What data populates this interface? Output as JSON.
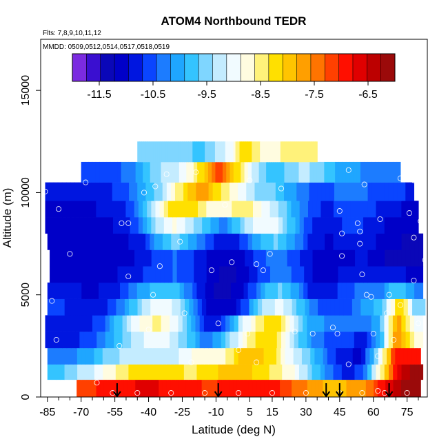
{
  "chart_data": {
    "type": "heatmap",
    "title": "ATOM4 Northbound TEDR",
    "subtitle_flights": "Flts: 7,8,9,10,11,12",
    "subtitle_dates": "MMDD: 0509,0512,0514,0517,0518,0519",
    "xlabel": "Latitude (deg N)",
    "ylabel": "Altitude (m)",
    "xlim": [
      -88,
      84
    ],
    "ylim": [
      0,
      17500
    ],
    "xticks": [
      -85,
      -70,
      -55,
      -40,
      -25,
      -10,
      5,
      15,
      30,
      45,
      60,
      75
    ],
    "x_minor_ticks": [
      -80,
      -75,
      -65,
      -60,
      -50,
      -45,
      -35,
      -30,
      -20,
      -15,
      -5,
      0,
      10,
      20,
      25,
      35,
      40,
      50,
      55,
      65,
      70,
      80
    ],
    "yticks": [
      0,
      5000,
      10000,
      15000
    ],
    "colorbar": {
      "ticks": [
        -11.5,
        -10.5,
        -9.5,
        -8.5,
        -7.5,
        -6.5
      ],
      "range": [
        -12,
        -6
      ],
      "colors": [
        "#7b2be0",
        "#3a0fd0",
        "#0a07b8",
        "#0000c8",
        "#0016e0",
        "#0a45ff",
        "#1c7cff",
        "#1fa6ff",
        "#34c4ff",
        "#7fd6ff",
        "#c4ecff",
        "#f1fbff",
        "#fffce0",
        "#fff27a",
        "#ffe000",
        "#ffc400",
        "#ff9f00",
        "#ff7400",
        "#ff4000",
        "#ff0f00",
        "#e00000",
        "#bc0000",
        "#9b0a0a"
      ]
    },
    "flight_markers_latitude": [
      -54,
      -9,
      39,
      45,
      67
    ],
    "data_band_altitudes": [
      500,
      1200,
      2000,
      2800,
      3600,
      4400,
      5200,
      6000,
      6800,
      7600,
      8400,
      9200,
      10000,
      11000,
      12000
    ],
    "data_band_lat_ranges": [
      [
        -72,
        81
      ],
      [
        -85,
        82
      ],
      [
        -85,
        81
      ],
      [
        -86,
        82
      ],
      [
        -86,
        82
      ],
      [
        -85,
        83
      ],
      [
        -85,
        82
      ],
      [
        -84,
        82
      ],
      [
        -84,
        82
      ],
      [
        -85,
        82
      ],
      [
        -86,
        80
      ],
      [
        -86,
        80
      ],
      [
        -86,
        78
      ],
      [
        -70,
        72
      ],
      [
        -45,
        35
      ]
    ],
    "data_values_log10_edr": [
      [
        -7.2,
        -7.0,
        -7.0,
        -6.8,
        -6.7,
        -6.8,
        -6.9,
        -7.0,
        -7.1,
        -7.0,
        -6.9,
        -6.8,
        -6.9,
        -7.2,
        -7.5,
        -7.8,
        -7.9,
        -7.8,
        -7.6,
        -6.9,
        -6.3,
        -6.0
      ],
      [
        -9.8,
        -9.5,
        -9.2,
        -8.8,
        -8.4,
        -8.2,
        -8.1,
        -8.3,
        -8.4,
        -8.2,
        -8.0,
        -7.9,
        -8.2,
        -8.5,
        -8.9,
        -9.6,
        -10.3,
        -10.8,
        -10.6,
        -8.6,
        -6.6,
        -6.2
      ],
      [
        -10.3,
        -10.2,
        -10.0,
        -9.6,
        -9.3,
        -9.2,
        -9.4,
        -9.2,
        -8.9,
        -8.6,
        -8.7,
        -7.9,
        -7.9,
        -8.4,
        -9.2,
        -9.7,
        -10.4,
        -10.9,
        -11.0,
        -9.3,
        -7.0,
        -6.8
      ],
      [
        -10.9,
        -10.8,
        -10.6,
        -10.2,
        -9.6,
        -9.2,
        -9.0,
        -9.2,
        -9.8,
        -10.4,
        -9.7,
        -8.8,
        -8.2,
        -8.3,
        -9.4,
        -10.2,
        -10.5,
        -10.6,
        -10.8,
        -10.0,
        -7.5,
        -8.7
      ],
      [
        -10.7,
        -10.9,
        -10.8,
        -10.4,
        -9.6,
        -8.8,
        -8.5,
        -9.0,
        -10.0,
        -10.9,
        -10.6,
        -9.2,
        -8.4,
        -8.2,
        -9.2,
        -10.1,
        -10.2,
        -10.4,
        -10.4,
        -9.9,
        -7.6,
        -9.0
      ],
      [
        -10.6,
        -10.8,
        -10.9,
        -10.7,
        -10.1,
        -9.4,
        -8.9,
        -9.2,
        -10.2,
        -11.2,
        -11.2,
        -10.6,
        -9.4,
        -9.0,
        -9.6,
        -10.4,
        -10.5,
        -10.5,
        -10.0,
        -9.8,
        -8.0,
        -9.6
      ],
      [
        -10.8,
        -10.9,
        -11.0,
        -10.9,
        -10.6,
        -10.1,
        -9.7,
        -9.8,
        -10.5,
        -11.2,
        -11.3,
        -11.0,
        -10.1,
        -9.6,
        -10.0,
        -10.8,
        -10.8,
        -10.6,
        -10.2,
        -10.3,
        -9.6,
        -10.2
      ],
      [
        -11.0,
        -11.0,
        -11.0,
        -11.0,
        -10.9,
        -10.7,
        -10.5,
        -10.4,
        -10.7,
        -11.1,
        -11.3,
        -11.1,
        -10.6,
        -10.2,
        -10.5,
        -11.0,
        -11.0,
        -10.9,
        -10.7,
        -10.9,
        -10.8,
        -11.1
      ],
      [
        -11.0,
        -11.0,
        -11.0,
        -11.0,
        -11.0,
        -10.9,
        -10.5,
        -10.4,
        -10.7,
        -11.0,
        -11.2,
        -11.0,
        -10.5,
        -10.2,
        -10.6,
        -11.0,
        -11.0,
        -11.0,
        -10.9,
        -11.2,
        -11.3,
        -11.4
      ],
      [
        -11.0,
        -11.0,
        -11.0,
        -11.0,
        -11.0,
        -10.8,
        -10.0,
        -9.6,
        -10.0,
        -10.6,
        -11.0,
        -10.6,
        -9.9,
        -9.6,
        -10.2,
        -10.8,
        -11.0,
        -10.8,
        -10.7,
        -11.0,
        -11.2,
        -11.3
      ],
      [
        -11.0,
        -11.0,
        -11.0,
        -11.0,
        -10.9,
        -10.5,
        -9.4,
        -8.8,
        -9.2,
        -9.8,
        -10.3,
        -9.6,
        -9.0,
        -9.0,
        -9.8,
        -10.6,
        -10.9,
        -10.7,
        -10.6,
        -10.9,
        -11.0,
        -11.1
      ],
      [
        -11.0,
        -11.0,
        -11.0,
        -10.9,
        -10.8,
        -10.3,
        -9.2,
        -8.2,
        -8.1,
        -8.6,
        -8.8,
        -8.4,
        -8.7,
        -9.2,
        -9.9,
        -10.5,
        -10.8,
        -10.6,
        -10.5,
        -10.7,
        -10.9,
        -11.0
      ],
      [
        -10.8,
        -10.8,
        -10.9,
        -10.8,
        -10.6,
        -10.2,
        -9.7,
        -8.9,
        -8.1,
        -7.6,
        -8.4,
        -8.9,
        -9.4,
        -9.6,
        -10.0,
        -10.4,
        -10.5,
        -10.4,
        -10.3,
        -10.5,
        -10.6,
        -10.7
      ],
      [
        -10.5,
        -10.5,
        -10.5,
        -10.3,
        -9.8,
        -9.4,
        -9.2,
        -8.8,
        -8.0,
        -7.2,
        -8.0,
        -8.9,
        -9.6,
        -9.8,
        -9.5,
        -9.3,
        -9.6,
        -9.9,
        -10.1,
        -10.2,
        -10.3,
        -10.4
      ],
      [
        -9.4,
        -9.4,
        -9.4,
        -9.4,
        -9.4,
        -9.4,
        -9.6,
        -9.8,
        -9.6,
        -9.4,
        -9.2,
        -9.0,
        -8.3,
        -8.1,
        -8.5,
        -8.7,
        -8.7,
        -8.6,
        -8.6,
        -8.6,
        -8.6,
        -8.6
      ]
    ],
    "sample_points": [
      [
        -86,
        10050
      ],
      [
        -80,
        9200
      ],
      [
        -75,
        7000
      ],
      [
        -83,
        4700
      ],
      [
        -81,
        2800
      ],
      [
        -68,
        10500
      ],
      [
        -52,
        8500
      ],
      [
        -49,
        8500
      ],
      [
        -49,
        5900
      ],
      [
        -42,
        10000
      ],
      [
        -38,
        5000
      ],
      [
        -35,
        6400
      ],
      [
        -40,
        3300
      ],
      [
        -53,
        2500
      ],
      [
        -37,
        10300
      ],
      [
        -32,
        10900
      ],
      [
        -26,
        7600
      ],
      [
        -19,
        11000
      ],
      [
        -24,
        4100
      ],
      [
        -21,
        1700
      ],
      [
        -63,
        700
      ],
      [
        -12,
        6200
      ],
      [
        -9,
        3600
      ],
      [
        -6,
        9400
      ],
      [
        -3,
        6600
      ],
      [
        0,
        2300
      ],
      [
        4,
        3100
      ],
      [
        8,
        6500
      ],
      [
        5,
        10600
      ],
      [
        8,
        1700
      ],
      [
        11,
        6200
      ],
      [
        14,
        7000
      ],
      [
        19,
        10200
      ],
      [
        25,
        3200
      ],
      [
        33,
        3100
      ],
      [
        42,
        3400
      ],
      [
        44,
        3100
      ],
      [
        45,
        9100
      ],
      [
        49,
        11100
      ],
      [
        46,
        6900
      ],
      [
        46,
        8000
      ],
      [
        49,
        1600
      ],
      [
        53,
        8500
      ],
      [
        54,
        8100
      ],
      [
        54,
        7500
      ],
      [
        56,
        10400
      ],
      [
        55,
        6000
      ],
      [
        57,
        5000
      ],
      [
        59,
        4900
      ],
      [
        63,
        8700
      ],
      [
        60,
        3100
      ],
      [
        66,
        4100
      ],
      [
        62,
        2000
      ],
      [
        67,
        5000
      ],
      [
        69,
        2800
      ],
      [
        72,
        4500
      ],
      [
        72,
        10700
      ],
      [
        76,
        9000
      ],
      [
        78,
        10600
      ],
      [
        78,
        7800
      ],
      [
        78,
        5700
      ],
      [
        80,
        3600
      ],
      [
        81,
        8600
      ],
      [
        83,
        6700
      ],
      [
        84,
        9300
      ],
      [
        62,
        300
      ],
      [
        -56,
        200
      ],
      [
        -45,
        200
      ],
      [
        -30,
        200
      ],
      [
        -15,
        200
      ],
      [
        0,
        200
      ],
      [
        15,
        200
      ],
      [
        30,
        200
      ],
      [
        45,
        200
      ],
      [
        55,
        200
      ],
      [
        65,
        200
      ],
      [
        75,
        200
      ]
    ],
    "grid": false,
    "legend_placement": "top"
  }
}
